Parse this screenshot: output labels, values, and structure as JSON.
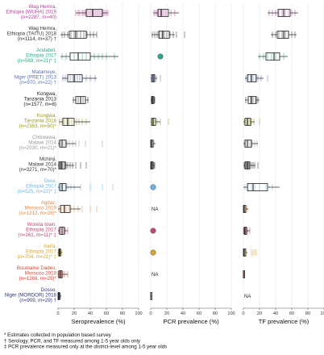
{
  "chart_data": {
    "type": "boxplot",
    "panels": [
      {
        "key": "sero",
        "xlabel": "Seroprevalence (%)",
        "xlim": [
          0,
          100
        ],
        "ticks": [
          0,
          20,
          40,
          60,
          80,
          100
        ]
      },
      {
        "key": "pcr",
        "xlabel": "PCR prevalence (%)",
        "xlim": [
          0,
          100
        ],
        "ticks": [
          0,
          20,
          40,
          60,
          80,
          100
        ]
      },
      {
        "key": "tf",
        "xlabel": "TF prevalence (%)",
        "xlim": [
          0,
          100
        ],
        "ticks": [
          0,
          20,
          40,
          60,
          80,
          100
        ]
      }
    ],
    "studies": [
      {
        "line1": "Wag Hemra,",
        "line2": "Ethiopia (WUHA) 2019",
        "line3": "(n=2287, m=40)",
        "color": "#b5429b",
        "sero": {
          "box": [
            22,
            35,
            43,
            55,
            62
          ],
          "jitter": [
            22,
            25,
            27,
            30,
            32,
            34,
            36,
            38,
            40,
            42,
            44,
            46,
            48,
            50,
            52,
            54,
            56,
            58,
            60,
            62
          ]
        },
        "pcr": {
          "box": [
            3,
            9,
            13,
            22,
            35
          ],
          "jitter": [
            4,
            6,
            8,
            10,
            12,
            14,
            16,
            18,
            20,
            25,
            30
          ]
        },
        "tf": {
          "box": [
            30,
            43,
            50,
            58,
            68
          ],
          "jitter": [
            32,
            36,
            40,
            44,
            48,
            52,
            56,
            60,
            64
          ]
        }
      },
      {
        "line1": "Wag Hemra,",
        "line2": "Ethiopia (TAITU) 2018",
        "line3": "(n=1114, m=37) †",
        "color": "#333333",
        "sero": {
          "box": [
            3,
            14,
            22,
            35,
            48
          ],
          "jitter": [
            5,
            8,
            12,
            16,
            20,
            24,
            28,
            32,
            36,
            40,
            44,
            48
          ]
        },
        "pcr": {
          "box": [
            1,
            10,
            15,
            23,
            30
          ],
          "jitter": [
            2,
            5,
            8,
            11,
            14,
            17,
            20,
            24,
            28,
            32,
            42
          ]
        },
        "tf": {
          "box": [
            34,
            42,
            50,
            56,
            66
          ],
          "jitter": [
            36,
            40,
            44,
            48,
            52,
            56,
            60,
            64
          ]
        }
      },
      {
        "line1": "Andabet,",
        "line2": "Ethiopia 2017",
        "line3": "(n=569, m=21)* ‡",
        "color": "#2aa88a",
        "sero": {
          "box": [
            3,
            15,
            25,
            40,
            75
          ],
          "jitter": [
            5,
            10,
            15,
            20,
            25,
            30,
            35,
            40,
            45,
            50,
            55,
            60,
            70
          ]
        },
        "pcr": {
          "point": 12
        },
        "tf": {
          "box": [
            18,
            28,
            38,
            45,
            55
          ],
          "jitter": [
            20,
            25,
            30,
            35,
            40,
            45,
            50
          ]
        }
      },
      {
        "line1": "Matameye,",
        "line2": "Niger (PRET) 2013",
        "line3": "(n=970, m=22) †",
        "color": "#5a6fb0",
        "sero": {
          "box": [
            5,
            12,
            20,
            30,
            48
          ],
          "jitter": [
            6,
            9,
            12,
            15,
            18,
            21,
            24,
            27,
            30,
            35,
            40,
            46
          ]
        },
        "pcr": {
          "box": [
            0,
            1,
            3,
            5,
            8
          ],
          "jitter": [
            1,
            2,
            3,
            4,
            5,
            7,
            12
          ]
        },
        "tf": {
          "box": [
            2,
            5,
            10,
            16,
            25
          ],
          "jitter": [
            3,
            6,
            9,
            12,
            15,
            18,
            22,
            30
          ]
        }
      },
      {
        "line1": "Kongwa,",
        "line2": "Tanzania 2013",
        "line3": "(n=1577, m=8)",
        "color": "#222222",
        "sero": {
          "box": [
            18,
            22,
            28,
            34,
            38
          ],
          "jitter": [
            19,
            22,
            25,
            28,
            31,
            34,
            37
          ]
        },
        "pcr": {
          "box": [
            0,
            1,
            2,
            4,
            5
          ],
          "jitter": [
            1,
            2,
            3,
            4,
            5
          ]
        },
        "tf": {
          "box": [
            2,
            6,
            10,
            16,
            20
          ],
          "jitter": [
            3,
            6,
            9,
            12,
            15,
            18
          ]
        }
      },
      {
        "line1": "Kongwa,",
        "line2": "Tanzania 2018",
        "line3": "(n=2383, m=50)*",
        "color": "#9a9a20",
        "sero": {
          "box": [
            1,
            6,
            12,
            20,
            40
          ],
          "jitter": [
            2,
            5,
            8,
            11,
            14,
            17,
            20,
            23,
            26,
            30,
            35
          ]
        },
        "pcr": {
          "box": [
            0,
            1,
            3,
            6,
            12
          ],
          "jitter": [
            1,
            2,
            3,
            4,
            6,
            8,
            12,
            22
          ]
        },
        "tf": {
          "box": [
            0,
            2,
            5,
            9,
            14
          ],
          "jitter": [
            1,
            2,
            4,
            6,
            8,
            10,
            13,
            20
          ]
        }
      },
      {
        "line1": "Chikwawa,",
        "line2": "Malawi 2014",
        "line3": "(n=2030, m=21)*",
        "color": "#999999",
        "sero": {
          "box": [
            0,
            2,
            5,
            10,
            22
          ],
          "jitter": [
            1,
            3,
            5,
            7,
            9,
            11,
            14,
            18,
            22,
            26,
            34,
            55
          ]
        },
        "pcr": {
          "box": [
            0,
            0,
            1,
            3,
            6
          ],
          "jitter": [
            0,
            1,
            2,
            3,
            4
          ]
        },
        "tf": {
          "box": [
            0,
            2,
            5,
            10,
            18
          ],
          "jitter": [
            1,
            3,
            5,
            7,
            9,
            11,
            14,
            17
          ]
        }
      },
      {
        "line1": "Mchinji,",
        "line2": "Malawi 2014",
        "line3": "(n=3271, m=70)*",
        "color": "#333333",
        "sero": {
          "box": [
            0,
            1,
            4,
            9,
            20
          ],
          "jitter": [
            1,
            2,
            3,
            4,
            5,
            6,
            8,
            10,
            12,
            15,
            18,
            22,
            28,
            35
          ]
        },
        "pcr": {
          "box": [
            0,
            0,
            1,
            3,
            5
          ],
          "jitter": [
            0,
            1,
            2,
            3,
            4,
            5
          ]
        },
        "tf": {
          "box": [
            0,
            2,
            5,
            8,
            15
          ],
          "jitter": [
            1,
            2,
            3,
            4,
            5,
            6,
            7,
            8,
            10,
            12,
            14,
            18
          ]
        }
      },
      {
        "line1": "Dera,",
        "line2": "Ethiopia 2017",
        "line3": "(n=525, m=22)* ‡",
        "color": "#6cb4e0",
        "sero": {
          "box": [
            0,
            2,
            5,
            10,
            28
          ],
          "jitter": [
            1,
            3,
            6,
            9,
            12,
            16,
            20,
            28,
            40,
            55,
            68
          ]
        },
        "pcr": {
          "point": 1
        },
        "tf": {
          "box": [
            0,
            5,
            12,
            30,
            45
          ],
          "jitter": [
            2,
            6,
            10,
            14,
            20,
            28,
            36
          ]
        }
      },
      {
        "line1": "Agdaz,",
        "line2": "Morocco 2019",
        "line3": "(n=1212, m=28)*",
        "color": "#e0894a",
        "sero": {
          "box": [
            0,
            3,
            8,
            15,
            28
          ],
          "jitter": [
            1,
            4,
            7,
            10,
            13,
            16,
            20,
            25,
            30,
            40,
            48
          ]
        },
        "pcr": {
          "na": "NA"
        },
        "tf": {
          "box": [
            0,
            0,
            1,
            3,
            6
          ],
          "jitter": [
            0,
            1,
            2,
            3,
            5
          ]
        }
      },
      {
        "line1": "Woreta town,",
        "line2": "Ethiopia 2017",
        "line3": "(n=261, m=11)* ‡",
        "color": "#c0486a",
        "sero": {
          "box": [
            0,
            2,
            5,
            8,
            12
          ],
          "jitter": [
            1,
            3,
            5,
            7,
            9,
            12
          ]
        },
        "pcr": {
          "point": 0
        },
        "tf": {
          "box": [
            0,
            1,
            2,
            4,
            8
          ],
          "jitter": [
            0,
            1,
            2,
            3,
            5,
            8
          ]
        }
      },
      {
        "line1": "Alefa,",
        "line2": "Ethiopia 2017",
        "line3": "(n=704, m=21)* ‡",
        "color": "#d9a12e",
        "sero": {
          "box": [
            0,
            1,
            2,
            3,
            5
          ],
          "jitter": [
            0,
            1,
            2,
            3,
            4,
            5
          ]
        },
        "pcr": {
          "point": 0
        },
        "tf": {
          "box": [
            0,
            0,
            1,
            3,
            5
          ],
          "jitter": [
            0,
            1,
            2,
            3,
            10,
            12,
            14,
            16
          ]
        }
      },
      {
        "line1": "Boumalne Dades,",
        "line2": "Morocco 2019",
        "line3": "(n=1266, m=29)*",
        "color": "#d04a3a",
        "sero": {
          "box": [
            0,
            1,
            3,
            5,
            12
          ],
          "jitter": [
            0,
            1,
            2,
            3,
            4,
            6,
            8,
            12
          ]
        },
        "pcr": {
          "na": "NA"
        },
        "tf": {
          "box": [
            0,
            0,
            0,
            1,
            2
          ],
          "jitter": [
            0,
            1
          ]
        }
      },
      {
        "line1": "Dosso,",
        "line2": "Niger (MORDOR) 2018",
        "line3": "(n=909, m=29) †",
        "color": "#2e3580",
        "sero": {
          "box": [
            0,
            0,
            1,
            2,
            4
          ],
          "jitter": [
            0,
            1,
            2,
            3
          ]
        },
        "pcr": {
          "box": [
            0,
            0,
            0,
            0,
            1
          ],
          "jitter": [
            0
          ]
        },
        "tf": {
          "na": "NA"
        }
      }
    ],
    "footnotes": [
      "* Estimates collected in population based survey",
      "† Serology, PCR, and TF measured among 1-5 year olds only",
      "‡ PCR prevalence measured only at the district-level among 1-5 year olds"
    ]
  }
}
